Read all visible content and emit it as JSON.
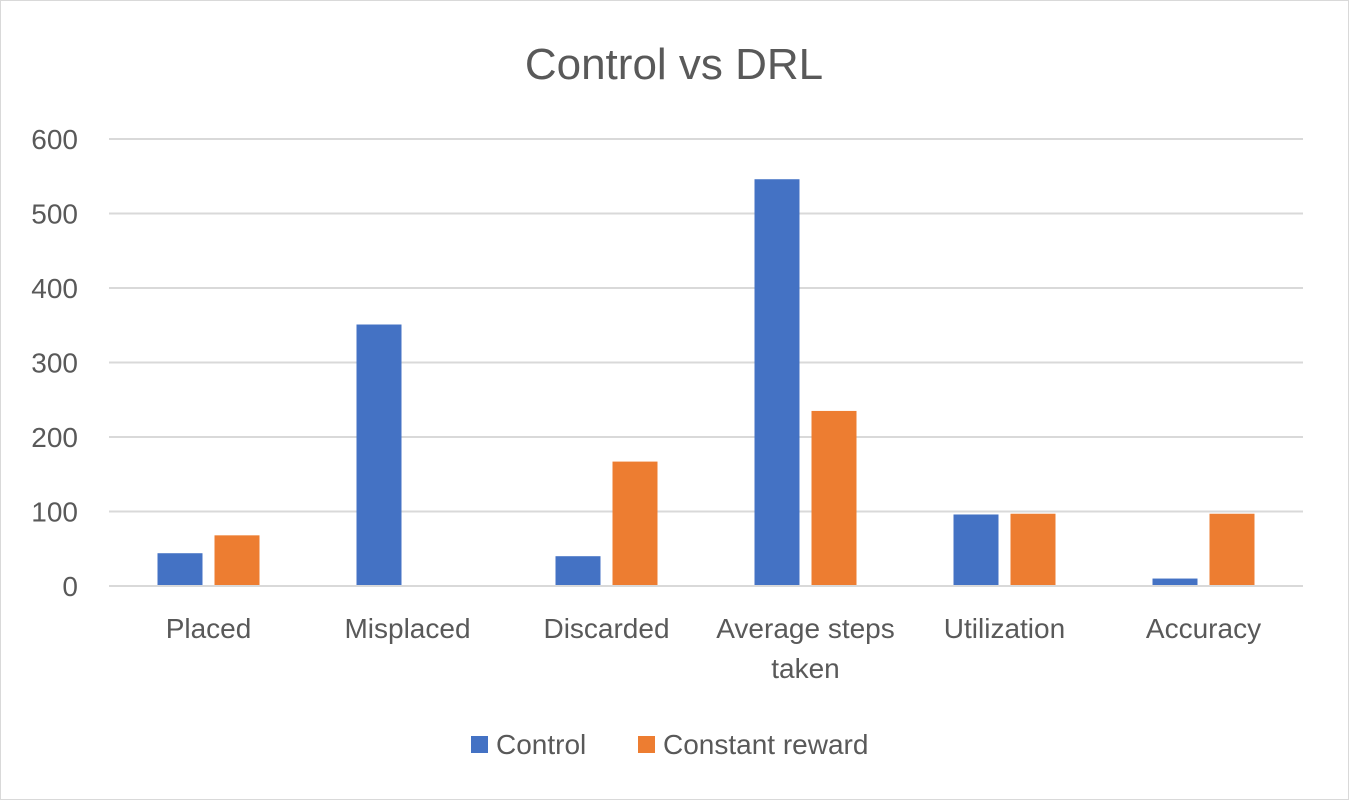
{
  "chart_data": {
    "type": "bar",
    "title": "Control vs DRL",
    "xlabel": "",
    "ylabel": "",
    "categories": [
      [
        "Placed"
      ],
      [
        "Misplaced"
      ],
      [
        "Discarded"
      ],
      [
        "Average steps",
        "taken"
      ],
      [
        "Utilization"
      ],
      [
        "Accuracy"
      ]
    ],
    "series": [
      {
        "name": "Control",
        "color": "#4472C4",
        "values": [
          44,
          351,
          40,
          546,
          96,
          10
        ]
      },
      {
        "name": "Constant reward",
        "color": "#ED7D31",
        "values": [
          68,
          0,
          167,
          235,
          97,
          97
        ]
      }
    ],
    "ylim": [
      0,
      600
    ],
    "yticks": [
      0,
      100,
      200,
      300,
      400,
      500,
      600
    ],
    "grid": true,
    "legend_position": "bottom"
  }
}
